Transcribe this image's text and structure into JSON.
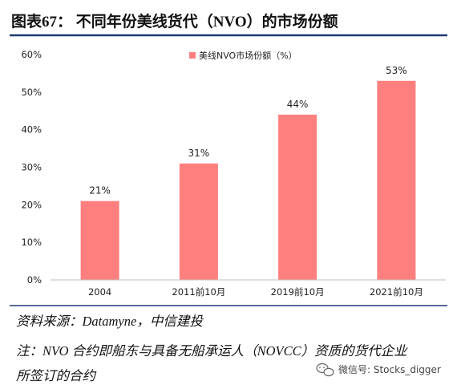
{
  "figure": {
    "title": "图表67：  不同年份美线货代（NVO）的市场份额",
    "source": "资料来源：Datamyne，中信建投",
    "note_line1": "注：NVO 合约即船东与具备无船承运人（NOVCC）资质的货代企业",
    "note_line2": "所签订的合约",
    "watermark": "微信号: Stocks_digger"
  },
  "colors": {
    "title_rule": "#1F3A73",
    "bar": "#FF7F7F",
    "axis_text": "#222222",
    "caption_text": "#111111"
  },
  "chart_data": {
    "type": "bar",
    "title": "",
    "categories": [
      "2004",
      "2011前10月",
      "2019前10月",
      "2021前10月"
    ],
    "series": [
      {
        "name": "美线NVO市场份额（%）",
        "values": [
          21,
          31,
          44,
          53
        ],
        "data_labels": [
          "21%",
          "31%",
          "44%",
          "53%"
        ]
      }
    ],
    "xlabel": "",
    "ylabel": "",
    "ylim": [
      0,
      60
    ],
    "yticks": [
      0,
      10,
      20,
      30,
      40,
      50,
      60
    ],
    "ytick_labels": [
      "0%",
      "10%",
      "20%",
      "30%",
      "40%",
      "50%",
      "60%"
    ],
    "grid": false,
    "legend": "top-center"
  }
}
